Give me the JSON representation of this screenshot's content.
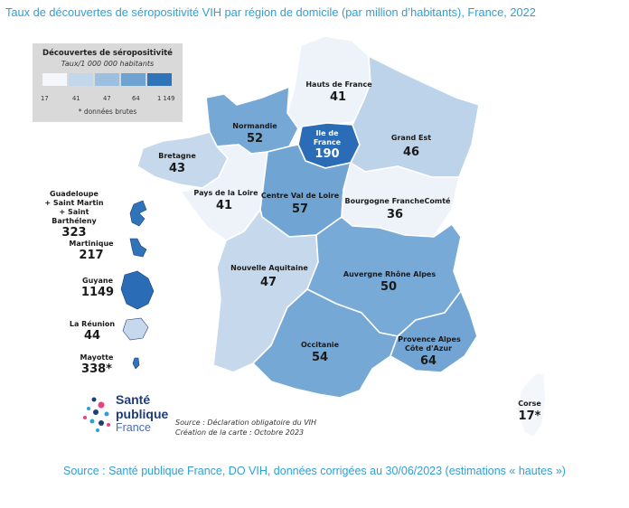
{
  "title": "Taux de découvertes de séropositivité VIH par région de domicile (par million d’habitants), France, 2022",
  "legend": {
    "title": "Découvertes de séropositivité",
    "subtitle": "Taux/1 000 000 habitants",
    "ticks": [
      "17",
      "41",
      "47",
      "64",
      "1 149"
    ],
    "colors": [
      "#f3f6fb",
      "#c3d7ea",
      "#9ec0e0",
      "#6fa3d2",
      "#2f73b9"
    ],
    "note": "* données brutes"
  },
  "regions": {
    "hauts_de_france": {
      "name": "Hauts de France",
      "value": "41",
      "color": "#eef3fa"
    },
    "normandie": {
      "name": "Normandie",
      "value": "52",
      "color": "#76a8d6"
    },
    "ile_de_france": {
      "name_line1": "Ile de",
      "name_line2": "France",
      "value": "190",
      "color": "#2a6cb5"
    },
    "grand_est": {
      "name": "Grand Est",
      "value": "46",
      "color": "#bcd3e9"
    },
    "bretagne": {
      "name": "Bretagne",
      "value": "43",
      "color": "#c6d9ec"
    },
    "pays_de_la_loire": {
      "name": "Pays de la Loire",
      "value": "41",
      "color": "#eef3fa"
    },
    "centre_val_de_loire": {
      "name": "Centre Val de Loire",
      "value": "57",
      "color": "#70a4d3"
    },
    "bourgogne_franche_comte": {
      "name": "Bourgogne FrancheComté",
      "value": "36",
      "color": "#eef3fa"
    },
    "nouvelle_aquitaine": {
      "name": "Nouvelle Aquitaine",
      "value": "47",
      "color": "#c6d9ec"
    },
    "auvergne_rhone_alpes": {
      "name": "Auvergne Rhône Alpes",
      "value": "50",
      "color": "#78aad7"
    },
    "occitanie": {
      "name": "Occitanie",
      "value": "54",
      "color": "#76a8d6"
    },
    "paca": {
      "name_line1": "Provence Alpes",
      "name_line2": "Côte d'Azur",
      "value": "64",
      "color": "#72a5d4"
    },
    "corse": {
      "name": "Corse",
      "value": "17*",
      "color": "#f3f6fb"
    }
  },
  "overseas": {
    "guadeloupe": {
      "line1": "Guadeloupe",
      "line2": "+ Saint Martin",
      "line3": "+ Saint Barthéleny",
      "value": "323",
      "color": "#2f73b9"
    },
    "martinique": {
      "name": "Martinique",
      "value": "217",
      "color": "#2f73b9"
    },
    "guyane": {
      "name": "Guyane",
      "value": "1149",
      "color": "#2a6cb5"
    },
    "reunion": {
      "name": "La Réunion",
      "value": "44",
      "color": "#c6d9ec"
    },
    "mayotte": {
      "name": "Mayotte",
      "value": "338*",
      "color": "#2f73b9"
    }
  },
  "logo": {
    "line1": "Santé",
    "line2": "publique",
    "line3": "France"
  },
  "source_note": {
    "line1": "Source : Déclaration obligatoire du VIH",
    "line2": "Création de la carte : Octobre 2023"
  },
  "footer": "Source : Santé publique France, DO VIH, données corrigées au 30/06/2023 (estimations « hautes »)"
}
